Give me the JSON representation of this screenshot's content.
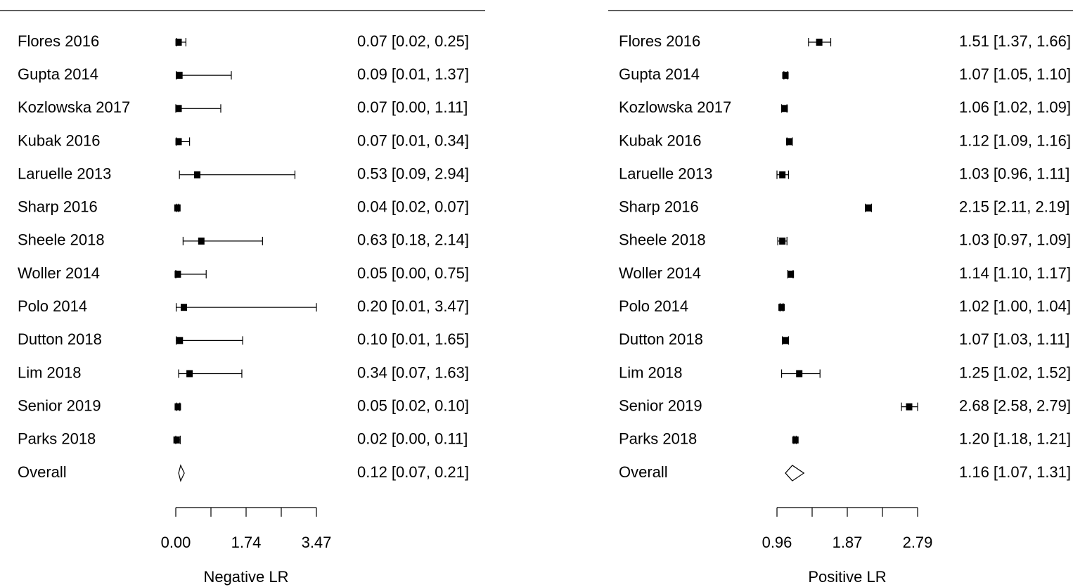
{
  "chart_data": [
    {
      "type": "forest",
      "xlabel": "Negative LR",
      "xlim": [
        0.0,
        3.47
      ],
      "xticks": [
        "0.00",
        "1.74",
        "3.47"
      ],
      "studies": [
        {
          "label": "Flores 2016",
          "est": 0.07,
          "lo": 0.02,
          "hi": 0.25,
          "text": "0.07 [0.02, 0.25]"
        },
        {
          "label": "Gupta 2014",
          "est": 0.09,
          "lo": 0.01,
          "hi": 1.37,
          "text": "0.09 [0.01, 1.37]"
        },
        {
          "label": "Kozlowska 2017",
          "est": 0.07,
          "lo": 0.0,
          "hi": 1.11,
          "text": "0.07 [0.00, 1.11]"
        },
        {
          "label": "Kubak 2016",
          "est": 0.07,
          "lo": 0.01,
          "hi": 0.34,
          "text": "0.07 [0.01, 0.34]"
        },
        {
          "label": "Laruelle 2013",
          "est": 0.53,
          "lo": 0.09,
          "hi": 2.94,
          "text": "0.53 [0.09, 2.94]"
        },
        {
          "label": "Sharp 2016",
          "est": 0.04,
          "lo": 0.02,
          "hi": 0.07,
          "text": "0.04 [0.02, 0.07]"
        },
        {
          "label": "Sheele 2018",
          "est": 0.63,
          "lo": 0.18,
          "hi": 2.14,
          "text": "0.63 [0.18, 2.14]"
        },
        {
          "label": "Woller 2014",
          "est": 0.05,
          "lo": 0.0,
          "hi": 0.75,
          "text": "0.05 [0.00, 0.75]"
        },
        {
          "label": "Polo 2014",
          "est": 0.2,
          "lo": 0.01,
          "hi": 3.47,
          "text": "0.20 [0.01, 3.47]"
        },
        {
          "label": "Dutton 2018",
          "est": 0.1,
          "lo": 0.01,
          "hi": 1.65,
          "text": "0.10 [0.01, 1.65]"
        },
        {
          "label": "Lim 2018",
          "est": 0.34,
          "lo": 0.07,
          "hi": 1.63,
          "text": "0.34 [0.07, 1.63]"
        },
        {
          "label": "Senior 2019",
          "est": 0.05,
          "lo": 0.02,
          "hi": 0.1,
          "text": "0.05 [0.02, 0.10]"
        },
        {
          "label": "Parks 2018",
          "est": 0.02,
          "lo": 0.0,
          "hi": 0.11,
          "text": "0.02 [0.00, 0.11]"
        }
      ],
      "overall": {
        "label": "Overall",
        "est": 0.12,
        "lo": 0.07,
        "hi": 0.21,
        "text": "0.12 [0.07, 0.21]"
      }
    },
    {
      "type": "forest",
      "xlabel": "Positive LR",
      "xlim": [
        0.96,
        2.79
      ],
      "xticks": [
        "0.96",
        "1.87",
        "2.79"
      ],
      "studies": [
        {
          "label": "Flores 2016",
          "est": 1.51,
          "lo": 1.37,
          "hi": 1.66,
          "text": "1.51 [1.37, 1.66]"
        },
        {
          "label": "Gupta 2014",
          "est": 1.07,
          "lo": 1.05,
          "hi": 1.1,
          "text": "1.07 [1.05, 1.10]"
        },
        {
          "label": "Kozlowska 2017",
          "est": 1.06,
          "lo": 1.02,
          "hi": 1.09,
          "text": "1.06 [1.02, 1.09]"
        },
        {
          "label": "Kubak 2016",
          "est": 1.12,
          "lo": 1.09,
          "hi": 1.16,
          "text": "1.12 [1.09, 1.16]"
        },
        {
          "label": "Laruelle 2013",
          "est": 1.03,
          "lo": 0.96,
          "hi": 1.11,
          "text": "1.03 [0.96, 1.11]"
        },
        {
          "label": "Sharp 2016",
          "est": 2.15,
          "lo": 2.11,
          "hi": 2.19,
          "text": "2.15 [2.11, 2.19]"
        },
        {
          "label": "Sheele 2018",
          "est": 1.03,
          "lo": 0.97,
          "hi": 1.09,
          "text": "1.03 [0.97, 1.09]"
        },
        {
          "label": "Woller 2014",
          "est": 1.14,
          "lo": 1.1,
          "hi": 1.17,
          "text": "1.14 [1.10, 1.17]"
        },
        {
          "label": "Polo 2014",
          "est": 1.02,
          "lo": 1.0,
          "hi": 1.04,
          "text": "1.02 [1.00, 1.04]"
        },
        {
          "label": "Dutton 2018",
          "est": 1.07,
          "lo": 1.03,
          "hi": 1.11,
          "text": "1.07 [1.03, 1.11]"
        },
        {
          "label": "Lim 2018",
          "est": 1.25,
          "lo": 1.02,
          "hi": 1.52,
          "text": "1.25 [1.02, 1.52]"
        },
        {
          "label": "Senior 2019",
          "est": 2.68,
          "lo": 2.58,
          "hi": 2.79,
          "text": "2.68 [2.58, 2.79]"
        },
        {
          "label": "Parks 2018",
          "est": 1.2,
          "lo": 1.18,
          "hi": 1.21,
          "text": "1.20 [1.18, 1.21]"
        }
      ],
      "overall": {
        "label": "Overall",
        "est": 1.16,
        "lo": 1.07,
        "hi": 1.31,
        "text": "1.16 [1.07, 1.31]"
      }
    }
  ]
}
